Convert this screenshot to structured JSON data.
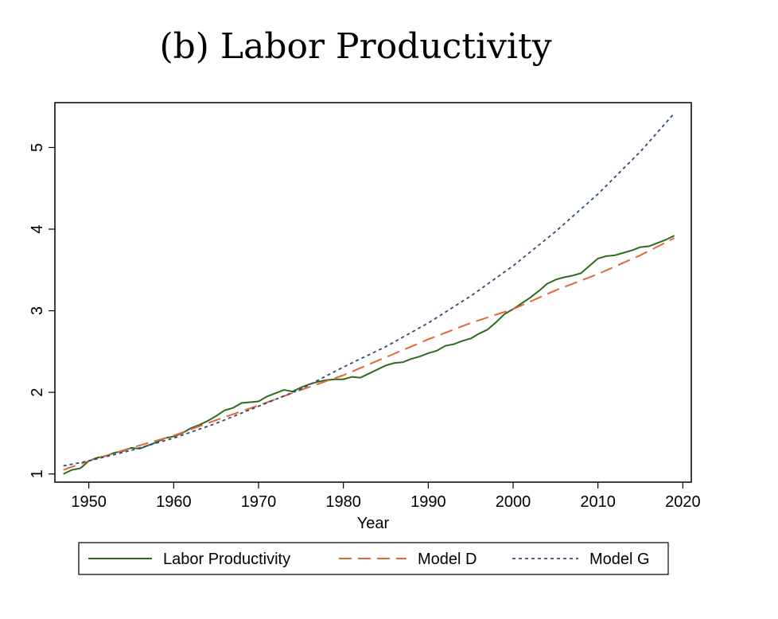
{
  "chart_data": {
    "type": "line",
    "title": "(b) Labor Productivity",
    "xlabel": "Year",
    "ylabel": "",
    "xlim": [
      1946,
      2021
    ],
    "ylim": [
      0.9,
      5.55
    ],
    "xticks": [
      1950,
      1960,
      1970,
      1980,
      1990,
      2000,
      2010,
      2020
    ],
    "yticks": [
      1,
      2,
      3,
      4,
      5
    ],
    "grid": false,
    "legend_position": "bottom",
    "series": [
      {
        "name": "Labor Productivity",
        "style": "solid",
        "color": "#2e6b1e",
        "x": [
          1947,
          1948,
          1949,
          1950,
          1951,
          1952,
          1953,
          1954,
          1955,
          1956,
          1957,
          1958,
          1959,
          1960,
          1961,
          1962,
          1963,
          1964,
          1965,
          1966,
          1967,
          1968,
          1969,
          1970,
          1971,
          1972,
          1973,
          1974,
          1975,
          1976,
          1977,
          1978,
          1979,
          1980,
          1981,
          1982,
          1983,
          1984,
          1985,
          1986,
          1987,
          1988,
          1989,
          1990,
          1991,
          1992,
          1993,
          1994,
          1995,
          1996,
          1997,
          1998,
          1999,
          2000,
          2001,
          2002,
          2003,
          2004,
          2005,
          2006,
          2007,
          2008,
          2009,
          2010,
          2011,
          2012,
          2013,
          2014,
          2015,
          2016,
          2017,
          2018,
          2019
        ],
        "y": [
          1.0,
          1.05,
          1.07,
          1.16,
          1.2,
          1.22,
          1.26,
          1.28,
          1.32,
          1.31,
          1.35,
          1.39,
          1.44,
          1.46,
          1.5,
          1.56,
          1.6,
          1.65,
          1.71,
          1.78,
          1.81,
          1.87,
          1.88,
          1.89,
          1.95,
          1.99,
          2.03,
          2.01,
          2.06,
          2.1,
          2.13,
          2.15,
          2.16,
          2.16,
          2.19,
          2.18,
          2.23,
          2.28,
          2.33,
          2.36,
          2.37,
          2.41,
          2.44,
          2.48,
          2.51,
          2.57,
          2.59,
          2.63,
          2.66,
          2.72,
          2.77,
          2.86,
          2.96,
          3.02,
          3.09,
          3.16,
          3.24,
          3.33,
          3.38,
          3.41,
          3.43,
          3.46,
          3.55,
          3.64,
          3.67,
          3.68,
          3.71,
          3.74,
          3.78,
          3.79,
          3.83,
          3.87,
          3.92
        ]
      },
      {
        "name": "Model D",
        "style": "dashed",
        "color": "#e0683a",
        "x": [
          1947,
          1950,
          1955,
          1960,
          1965,
          1970,
          1975,
          1980,
          1985,
          1990,
          1995,
          2000,
          2005,
          2010,
          2015,
          2019
        ],
        "y": [
          1.05,
          1.16,
          1.32,
          1.47,
          1.66,
          1.84,
          2.03,
          2.21,
          2.43,
          2.65,
          2.85,
          3.02,
          3.25,
          3.45,
          3.68,
          3.89
        ]
      },
      {
        "name": "Model G",
        "style": "dotted",
        "color": "#2f4a78",
        "x": [
          1947,
          1950,
          1955,
          1960,
          1965,
          1970,
          1975,
          1980,
          1985,
          1990,
          1995,
          2000,
          2005,
          2010,
          2015,
          2019
        ],
        "y": [
          1.1,
          1.16,
          1.29,
          1.44,
          1.62,
          1.83,
          2.04,
          2.31,
          2.56,
          2.85,
          3.18,
          3.55,
          3.97,
          4.43,
          4.95,
          5.42
        ]
      }
    ]
  }
}
